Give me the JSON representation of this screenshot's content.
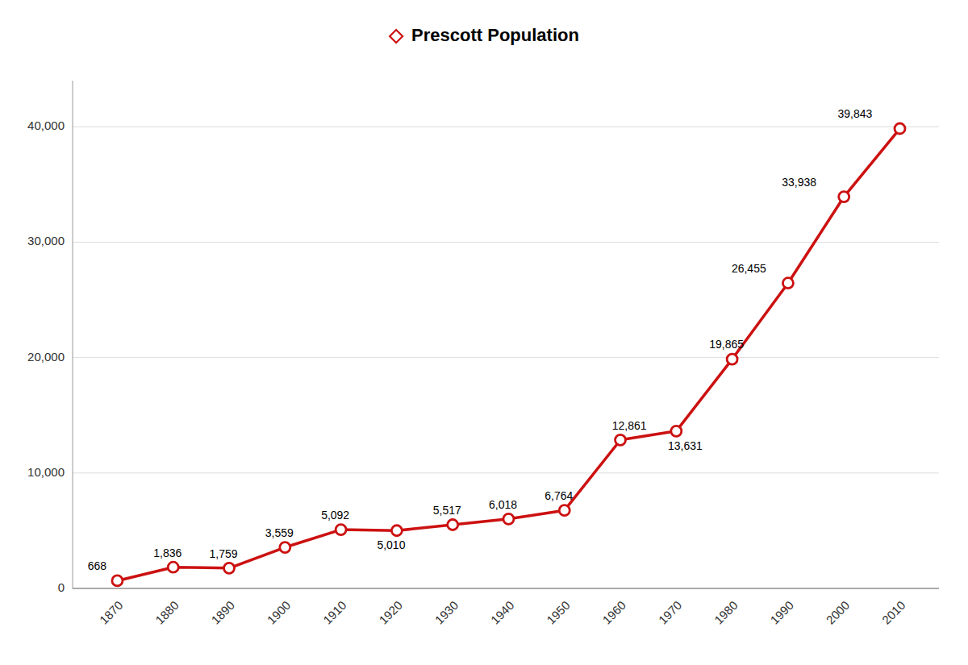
{
  "chart_data": {
    "type": "line",
    "x": [
      1870,
      1880,
      1890,
      1900,
      1910,
      1920,
      1930,
      1940,
      1950,
      1960,
      1970,
      1980,
      1990,
      2000,
      2010
    ],
    "series": [
      {
        "name": "Prescott Population",
        "color": "#cc1111",
        "marker": "circle",
        "line_style": "solid",
        "values": [
          668,
          1836,
          1759,
          3559,
          5092,
          5010,
          5517,
          6018,
          6764,
          12861,
          13631,
          19865,
          26455,
          33938,
          39843
        ],
        "value_labels": [
          "668",
          "1,836",
          "1,759",
          "3,559",
          "5,092",
          "5,010",
          "5,517",
          "6,018",
          "6,764",
          "12,861",
          "13,631",
          "19,865",
          "26,455",
          "33,938",
          "39,843"
        ]
      }
    ],
    "xlim": [
      1862,
      2017
    ],
    "xticks": [
      1870,
      1880,
      1890,
      1900,
      1910,
      1920,
      1930,
      1940,
      1950,
      1960,
      1970,
      1980,
      1990,
      2000,
      2010
    ],
    "ylim": [
      0,
      44000
    ],
    "yticks": [
      0,
      {
        "value": 10000,
        "label": "10,000"
      },
      {
        "value": 20000,
        "label": "20,000"
      },
      {
        "value": 30000,
        "label": "30,000"
      },
      {
        "value": 40000,
        "label": "40,000"
      }
    ],
    "grid": true,
    "legend": "top",
    "data_labels": true
  }
}
